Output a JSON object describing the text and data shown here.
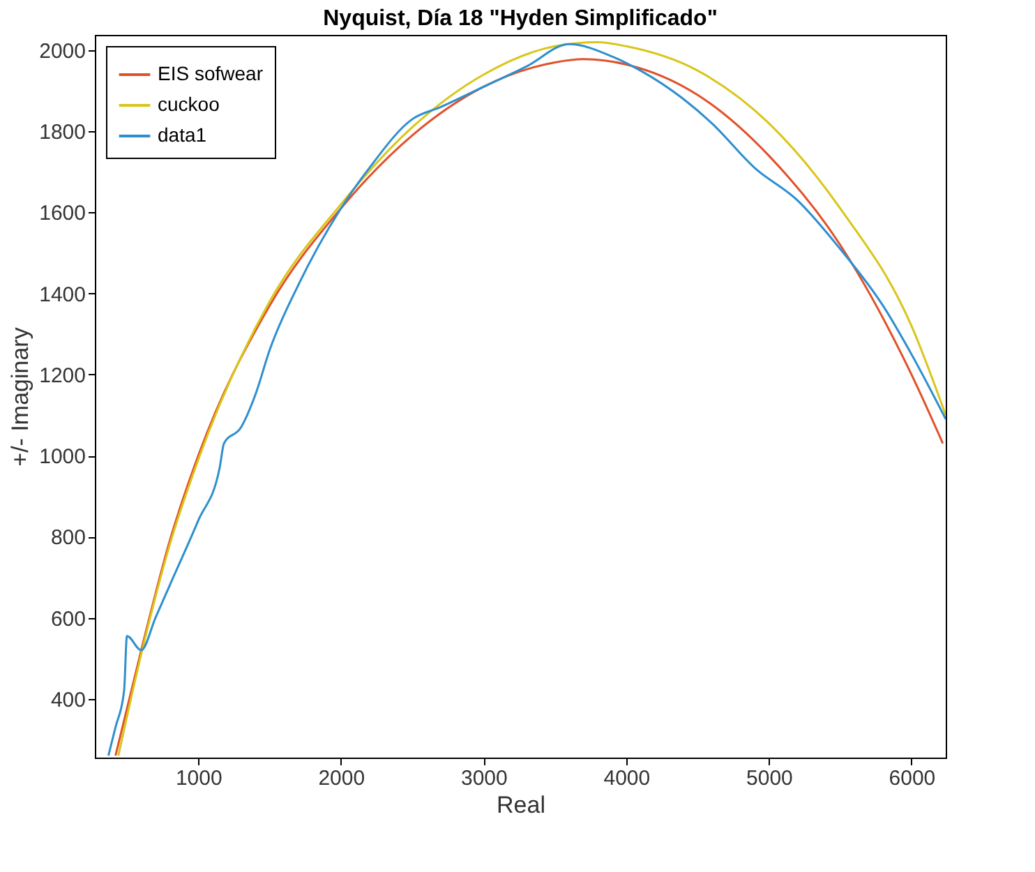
{
  "chart_data": {
    "type": "line",
    "title": "Nyquist, Día 18 \"Hyden Simplificado\"",
    "xlabel": "Real",
    "ylabel": "+/- Imaginary",
    "xlim": [
      275,
      6240
    ],
    "ylim": [
      255,
      2038
    ],
    "xticks": [
      1000,
      2000,
      3000,
      4000,
      5000,
      6000
    ],
    "yticks": [
      400,
      600,
      800,
      1000,
      1200,
      1400,
      1600,
      1800,
      2000
    ],
    "grid": false,
    "legend": "top left",
    "line_style": "solid",
    "marker": "none",
    "series": [
      {
        "name": "EIS sofwear",
        "color": "#e0522a",
        "x": [
          420,
          600,
          800,
          1000,
          1500,
          2000,
          2500,
          3000,
          3500,
          3700,
          4000,
          4500,
          5000,
          5500,
          6000,
          6220
        ],
        "values": [
          260,
          520,
          790,
          1000,
          1370,
          1610,
          1790,
          1910,
          1970,
          1978,
          1965,
          1890,
          1740,
          1520,
          1200,
          1030
        ]
      },
      {
        "name": "cuckoo",
        "color": "#d9c61a",
        "x": [
          440,
          600,
          800,
          1000,
          1500,
          2000,
          2500,
          3000,
          3500,
          3800,
          4000,
          4500,
          5000,
          5500,
          6000,
          6240
        ],
        "values": [
          260,
          510,
          780,
          990,
          1380,
          1620,
          1810,
          1940,
          2010,
          2020,
          2010,
          1950,
          1820,
          1610,
          1320,
          1100
        ]
      },
      {
        "name": "data1",
        "color": "#2e8fce",
        "x": [
          370,
          420,
          480,
          500,
          600,
          700,
          800,
          1000,
          1150,
          1180,
          1300,
          1400,
          1500,
          1700,
          2000,
          2200,
          2500,
          2700,
          3000,
          3300,
          3600,
          3900,
          4100,
          4400,
          4600,
          4900,
          5200,
          5500,
          5800,
          6000,
          6240
        ],
        "values": [
          260,
          330,
          420,
          555,
          520,
          600,
          680,
          840,
          970,
          1030,
          1070,
          1150,
          1260,
          1420,
          1610,
          1710,
          1830,
          1860,
          1910,
          1960,
          2015,
          1985,
          1950,
          1880,
          1820,
          1710,
          1630,
          1510,
          1370,
          1250,
          1090
        ]
      }
    ]
  }
}
